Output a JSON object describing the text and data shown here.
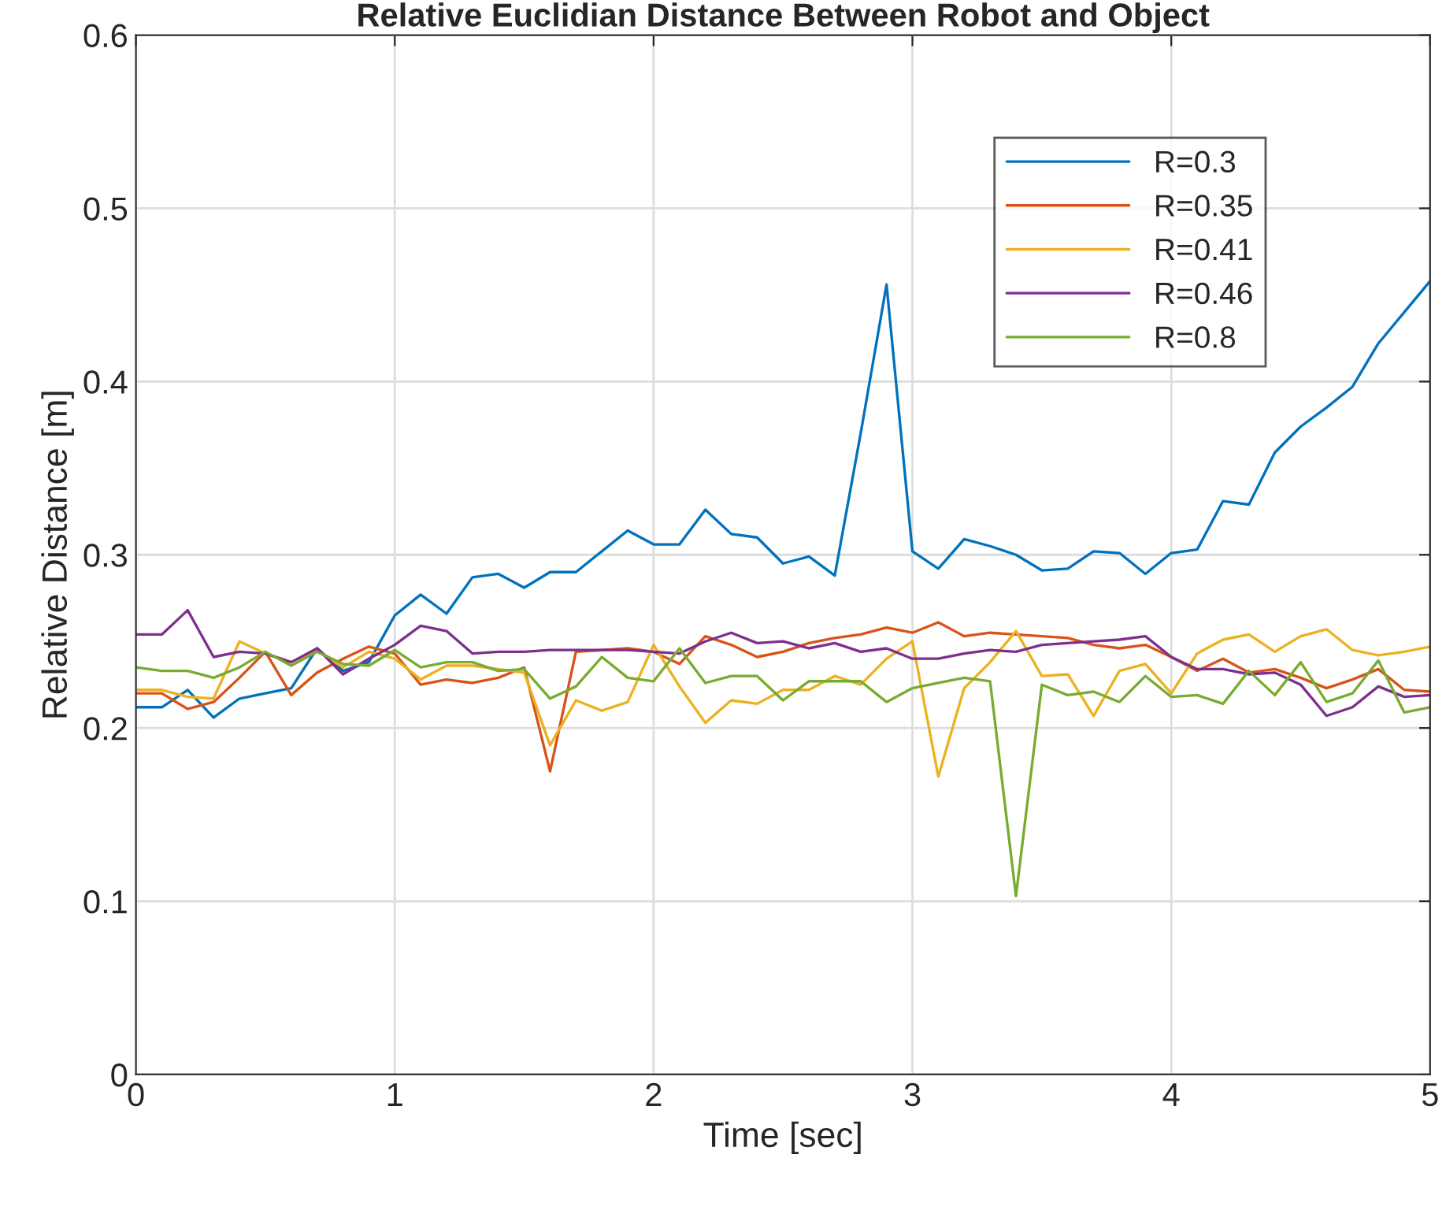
{
  "chart_data": {
    "type": "line",
    "title": "Relative Euclidian Distance Between Robot and Object",
    "xlabel": "Time [sec]",
    "ylabel": "Relative Distance [m]",
    "x": [
      0,
      0.1,
      0.2,
      0.3,
      0.4,
      0.5,
      0.6,
      0.7,
      0.8,
      0.9,
      1.0,
      1.1,
      1.2,
      1.3,
      1.4,
      1.5,
      1.6,
      1.7,
      1.8,
      1.9,
      2.0,
      2.1,
      2.2,
      2.3,
      2.4,
      2.5,
      2.6,
      2.7,
      2.8,
      2.9,
      3.0,
      3.1,
      3.2,
      3.3,
      3.4,
      3.5,
      3.6,
      3.7,
      3.8,
      3.9,
      4.0,
      4.1,
      4.2,
      4.3,
      4.4,
      4.5,
      4.6,
      4.7,
      4.8,
      4.9,
      5.0
    ],
    "series": [
      {
        "name": "R=0.3",
        "color": "#0072bd",
        "values": [
          0.212,
          0.212,
          0.222,
          0.206,
          0.217,
          0.22,
          0.223,
          0.246,
          0.233,
          0.238,
          0.265,
          0.277,
          0.266,
          0.287,
          0.289,
          0.281,
          0.29,
          0.29,
          0.302,
          0.314,
          0.306,
          0.306,
          0.326,
          0.312,
          0.31,
          0.295,
          0.299,
          0.288,
          0.37,
          0.456,
          0.302,
          0.292,
          0.309,
          0.305,
          0.3,
          0.291,
          0.292,
          0.302,
          0.301,
          0.289,
          0.301,
          0.303,
          0.331,
          0.329,
          0.359,
          0.374,
          0.385,
          0.397,
          0.422,
          0.44,
          0.458
        ]
      },
      {
        "name": "R=0.35",
        "color": "#d95319",
        "values": [
          0.22,
          0.22,
          0.211,
          0.215,
          0.229,
          0.244,
          0.219,
          0.232,
          0.24,
          0.247,
          0.243,
          0.225,
          0.228,
          0.226,
          0.229,
          0.235,
          0.175,
          0.244,
          0.245,
          0.246,
          0.244,
          0.237,
          0.253,
          0.248,
          0.241,
          0.244,
          0.249,
          0.252,
          0.254,
          0.258,
          0.255,
          0.261,
          0.253,
          0.255,
          0.254,
          0.253,
          0.252,
          0.248,
          0.246,
          0.248,
          0.241,
          0.233,
          0.24,
          0.232,
          0.234,
          0.229,
          0.223,
          0.228,
          0.234,
          0.222,
          0.221
        ]
      },
      {
        "name": "R=0.41",
        "color": "#edb120",
        "values": [
          0.222,
          0.222,
          0.218,
          0.217,
          0.25,
          0.243,
          0.238,
          0.245,
          0.235,
          0.244,
          0.24,
          0.228,
          0.236,
          0.236,
          0.234,
          0.232,
          0.19,
          0.216,
          0.21,
          0.215,
          0.248,
          0.224,
          0.203,
          0.216,
          0.214,
          0.222,
          0.222,
          0.23,
          0.225,
          0.24,
          0.25,
          0.172,
          0.223,
          0.238,
          0.256,
          0.23,
          0.231,
          0.207,
          0.233,
          0.237,
          0.22,
          0.243,
          0.251,
          0.254,
          0.244,
          0.253,
          0.257,
          0.245,
          0.242,
          0.244,
          0.247
        ]
      },
      {
        "name": "R=0.46",
        "color": "#7e2f8e",
        "values": [
          0.254,
          0.254,
          0.268,
          0.241,
          0.244,
          0.243,
          0.238,
          0.246,
          0.231,
          0.24,
          0.248,
          0.259,
          0.256,
          0.243,
          0.244,
          0.244,
          0.245,
          0.245,
          0.245,
          0.245,
          0.244,
          0.243,
          0.25,
          0.255,
          0.249,
          0.25,
          0.246,
          0.249,
          0.244,
          0.246,
          0.24,
          0.24,
          0.243,
          0.245,
          0.244,
          0.248,
          0.249,
          0.25,
          0.251,
          0.253,
          0.241,
          0.234,
          0.234,
          0.231,
          0.232,
          0.225,
          0.207,
          0.212,
          0.224,
          0.218,
          0.219
        ]
      },
      {
        "name": "R=0.8",
        "color": "#77ac30",
        "values": [
          0.235,
          0.233,
          0.233,
          0.229,
          0.235,
          0.244,
          0.236,
          0.244,
          0.237,
          0.236,
          0.245,
          0.235,
          0.238,
          0.238,
          0.233,
          0.234,
          0.217,
          0.224,
          0.241,
          0.229,
          0.227,
          0.246,
          0.226,
          0.23,
          0.23,
          0.216,
          0.227,
          0.227,
          0.227,
          0.215,
          0.223,
          0.226,
          0.229,
          0.227,
          0.103,
          0.225,
          0.219,
          0.221,
          0.215,
          0.23,
          0.218,
          0.219,
          0.214,
          0.233,
          0.219,
          0.238,
          0.215,
          0.22,
          0.239,
          0.209,
          0.212
        ]
      }
    ],
    "xlim": [
      0,
      5
    ],
    "xticks": [
      0,
      1,
      2,
      3,
      4,
      5
    ],
    "ylim": [
      0,
      0.6
    ],
    "yticks": [
      0,
      0.1,
      0.2,
      0.3,
      0.4,
      0.5,
      0.6
    ],
    "grid": true,
    "legend": "top right"
  }
}
